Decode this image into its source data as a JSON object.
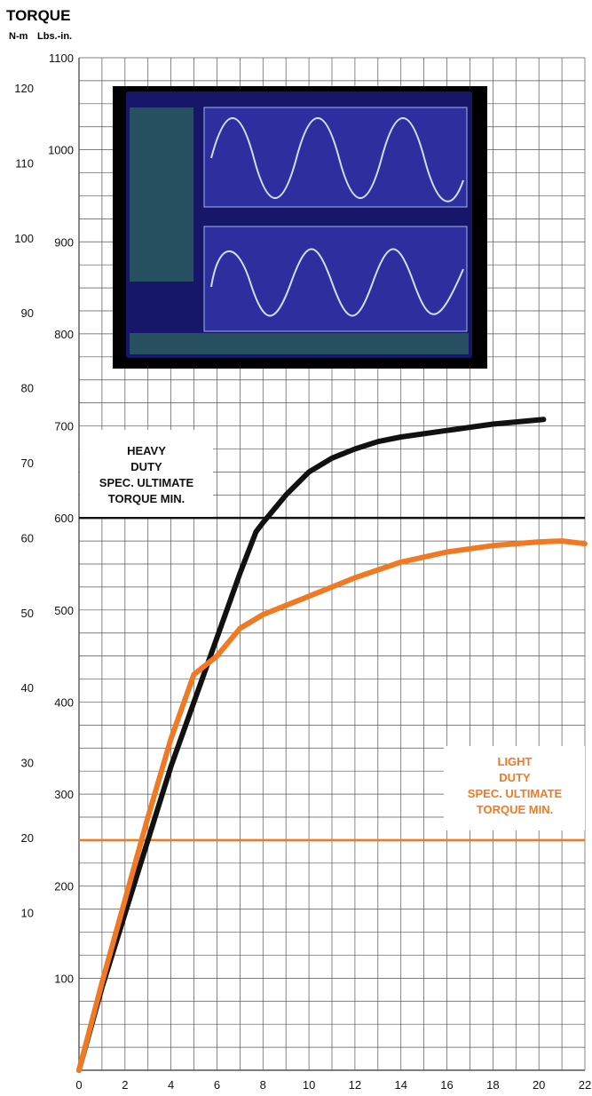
{
  "chart_data": {
    "type": "line",
    "title": "TORQUE",
    "left_axis_units": [
      "N-m",
      "Lbs.-in."
    ],
    "x": {
      "min": 0,
      "max": 22,
      "ticks": [
        0,
        2,
        4,
        6,
        8,
        10,
        12,
        14,
        16,
        18,
        20,
        22
      ]
    },
    "y_lbs_in": {
      "min": 0,
      "max": 1100,
      "ticks": [
        100,
        200,
        300,
        400,
        500,
        600,
        700,
        800,
        900,
        1000,
        1100
      ]
    },
    "y_nm": {
      "ticks": [
        10,
        20,
        30,
        40,
        50,
        60,
        70,
        80,
        90,
        100,
        110,
        120
      ]
    },
    "grid": true,
    "series": [
      {
        "color": "#111111",
        "x": [
          0,
          1,
          2,
          3,
          4,
          5,
          6,
          7,
          7.7,
          8,
          9,
          10,
          11,
          12,
          13,
          14,
          16,
          18,
          20.2
        ],
        "y": [
          0,
          90,
          170,
          250,
          330,
          400,
          470,
          540,
          585,
          595,
          625,
          650,
          665,
          675,
          683,
          688,
          695,
          702,
          707
        ]
      },
      {
        "color": "#f07a23",
        "x": [
          0,
          1,
          2,
          3,
          4,
          5,
          6,
          7,
          8,
          9,
          10,
          12,
          14,
          16,
          18,
          20,
          21,
          22
        ],
        "y": [
          0,
          95,
          185,
          275,
          360,
          430,
          450,
          480,
          495,
          505,
          515,
          535,
          552,
          563,
          570,
          574,
          575,
          572
        ]
      }
    ],
    "reference_lines": [
      {
        "y": 600,
        "color": "#111111",
        "label": [
          "HEAVY",
          "DUTY",
          "SPEC. ULTIMATE",
          "TORQUE MIN."
        ]
      },
      {
        "y": 250,
        "color": "#f07a23",
        "label": [
          "LIGHT",
          "DUTY",
          "SPEC. ULTIMATE",
          "TORQUE MIN."
        ]
      }
    ]
  }
}
